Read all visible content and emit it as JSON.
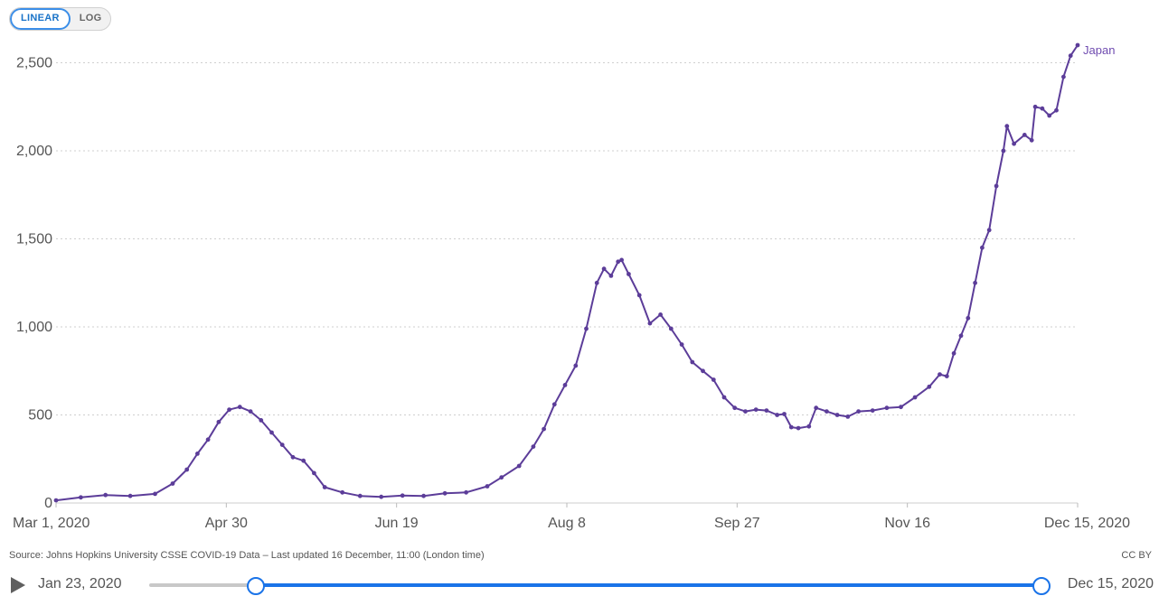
{
  "scale_toggle": {
    "linear_label": "LINEAR",
    "log_label": "LOG",
    "active": "linear"
  },
  "colors": {
    "series": "#5c3d99",
    "accent": "#1a73e8",
    "grid": "#cfcfcf"
  },
  "chart_data": {
    "type": "line",
    "title": "",
    "xlabel": "",
    "ylabel": "",
    "x_ticks": [
      "Mar 1, 2020",
      "Apr 30",
      "Jun 19",
      "Aug 8",
      "Sep 27",
      "Nov 16",
      "Dec 15, 2020"
    ],
    "y_ticks": [
      0,
      500,
      1000,
      1500,
      2000,
      2500
    ],
    "y_tick_labels": [
      "0",
      "500",
      "1,000",
      "1,500",
      "2,000",
      "2,500"
    ],
    "xlim": [
      "2020-03-01",
      "2020-12-15"
    ],
    "ylim": [
      0,
      2600
    ],
    "grid": "horizontal dotted",
    "legend": "inline at line end",
    "series": [
      {
        "name": "Japan",
        "values": [
          {
            "x": "2020-03-01",
            "y": 15
          },
          {
            "x": "2020-03-08",
            "y": 32
          },
          {
            "x": "2020-03-15",
            "y": 45
          },
          {
            "x": "2020-03-22",
            "y": 40
          },
          {
            "x": "2020-03-29",
            "y": 52
          },
          {
            "x": "2020-04-03",
            "y": 110
          },
          {
            "x": "2020-04-07",
            "y": 190
          },
          {
            "x": "2020-04-10",
            "y": 280
          },
          {
            "x": "2020-04-13",
            "y": 360
          },
          {
            "x": "2020-04-16",
            "y": 460
          },
          {
            "x": "2020-04-19",
            "y": 530
          },
          {
            "x": "2020-04-22",
            "y": 545
          },
          {
            "x": "2020-04-25",
            "y": 520
          },
          {
            "x": "2020-04-28",
            "y": 470
          },
          {
            "x": "2020-05-01",
            "y": 400
          },
          {
            "x": "2020-05-04",
            "y": 330
          },
          {
            "x": "2020-05-07",
            "y": 260
          },
          {
            "x": "2020-05-10",
            "y": 240
          },
          {
            "x": "2020-05-13",
            "y": 170
          },
          {
            "x": "2020-05-16",
            "y": 90
          },
          {
            "x": "2020-05-21",
            "y": 60
          },
          {
            "x": "2020-05-26",
            "y": 40
          },
          {
            "x": "2020-06-01",
            "y": 35
          },
          {
            "x": "2020-06-07",
            "y": 42
          },
          {
            "x": "2020-06-13",
            "y": 40
          },
          {
            "x": "2020-06-19",
            "y": 55
          },
          {
            "x": "2020-06-25",
            "y": 60
          },
          {
            "x": "2020-07-01",
            "y": 95
          },
          {
            "x": "2020-07-05",
            "y": 145
          },
          {
            "x": "2020-07-10",
            "y": 210
          },
          {
            "x": "2020-07-14",
            "y": 320
          },
          {
            "x": "2020-07-17",
            "y": 420
          },
          {
            "x": "2020-07-20",
            "y": 560
          },
          {
            "x": "2020-07-23",
            "y": 670
          },
          {
            "x": "2020-07-26",
            "y": 780
          },
          {
            "x": "2020-07-29",
            "y": 990
          },
          {
            "x": "2020-08-01",
            "y": 1250
          },
          {
            "x": "2020-08-03",
            "y": 1330
          },
          {
            "x": "2020-08-05",
            "y": 1290
          },
          {
            "x": "2020-08-07",
            "y": 1370
          },
          {
            "x": "2020-08-08",
            "y": 1380
          },
          {
            "x": "2020-08-10",
            "y": 1300
          },
          {
            "x": "2020-08-13",
            "y": 1180
          },
          {
            "x": "2020-08-16",
            "y": 1020
          },
          {
            "x": "2020-08-19",
            "y": 1070
          },
          {
            "x": "2020-08-22",
            "y": 990
          },
          {
            "x": "2020-08-25",
            "y": 900
          },
          {
            "x": "2020-08-28",
            "y": 800
          },
          {
            "x": "2020-08-31",
            "y": 750
          },
          {
            "x": "2020-09-03",
            "y": 700
          },
          {
            "x": "2020-09-06",
            "y": 600
          },
          {
            "x": "2020-09-09",
            "y": 540
          },
          {
            "x": "2020-09-12",
            "y": 520
          },
          {
            "x": "2020-09-15",
            "y": 530
          },
          {
            "x": "2020-09-18",
            "y": 525
          },
          {
            "x": "2020-09-21",
            "y": 500
          },
          {
            "x": "2020-09-23",
            "y": 505
          },
          {
            "x": "2020-09-25",
            "y": 430
          },
          {
            "x": "2020-09-27",
            "y": 425
          },
          {
            "x": "2020-09-30",
            "y": 435
          },
          {
            "x": "2020-10-02",
            "y": 540
          },
          {
            "x": "2020-10-05",
            "y": 520
          },
          {
            "x": "2020-10-08",
            "y": 500
          },
          {
            "x": "2020-10-11",
            "y": 490
          },
          {
            "x": "2020-10-14",
            "y": 520
          },
          {
            "x": "2020-10-18",
            "y": 525
          },
          {
            "x": "2020-10-22",
            "y": 540
          },
          {
            "x": "2020-10-26",
            "y": 545
          },
          {
            "x": "2020-10-30",
            "y": 600
          },
          {
            "x": "2020-11-03",
            "y": 660
          },
          {
            "x": "2020-11-06",
            "y": 730
          },
          {
            "x": "2020-11-08",
            "y": 720
          },
          {
            "x": "2020-11-10",
            "y": 850
          },
          {
            "x": "2020-11-12",
            "y": 950
          },
          {
            "x": "2020-11-14",
            "y": 1050
          },
          {
            "x": "2020-11-16",
            "y": 1250
          },
          {
            "x": "2020-11-18",
            "y": 1450
          },
          {
            "x": "2020-11-20",
            "y": 1550
          },
          {
            "x": "2020-11-22",
            "y": 1800
          },
          {
            "x": "2020-11-24",
            "y": 2000
          },
          {
            "x": "2020-11-25",
            "y": 2140
          },
          {
            "x": "2020-11-27",
            "y": 2040
          },
          {
            "x": "2020-11-30",
            "y": 2090
          },
          {
            "x": "2020-12-02",
            "y": 2060
          },
          {
            "x": "2020-12-03",
            "y": 2250
          },
          {
            "x": "2020-12-05",
            "y": 2240
          },
          {
            "x": "2020-12-07",
            "y": 2200
          },
          {
            "x": "2020-12-09",
            "y": 2230
          },
          {
            "x": "2020-12-11",
            "y": 2420
          },
          {
            "x": "2020-12-13",
            "y": 2540
          },
          {
            "x": "2020-12-15",
            "y": 2600
          }
        ]
      }
    ]
  },
  "footer": {
    "source": "Source: Johns Hopkins University CSSE COVID-19 Data – Last updated 16 December, 11:00 (London time)",
    "license": "CC BY"
  },
  "timeline": {
    "start_label": "Jan 23, 2020",
    "end_label": "Dec 15, 2020"
  }
}
